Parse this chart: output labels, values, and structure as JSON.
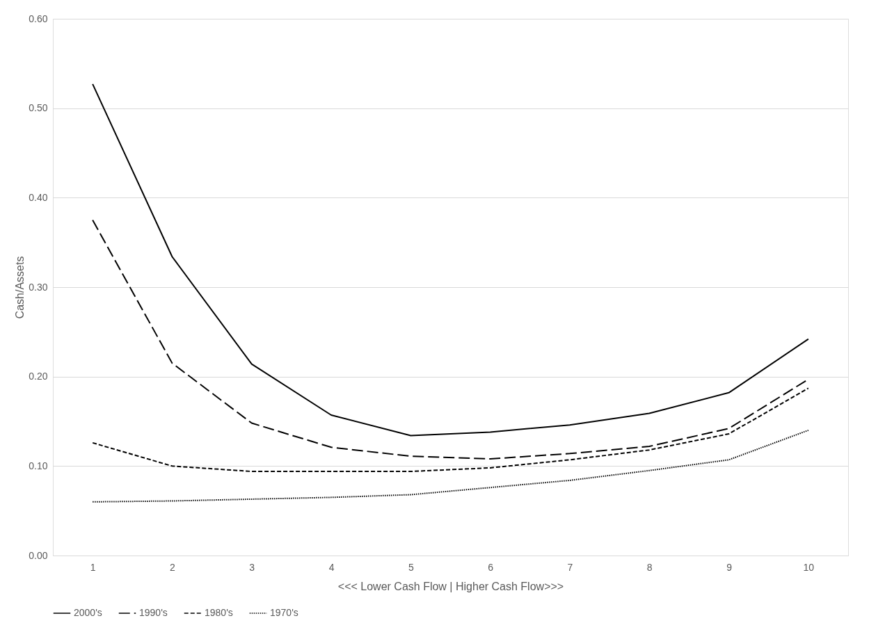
{
  "chart_data": {
    "type": "line",
    "xlabel": "<<< Lower Cash Flow    |    Higher Cash Flow>>>",
    "ylabel": "Cash/Assets",
    "categories": [
      "1",
      "2",
      "3",
      "4",
      "5",
      "6",
      "7",
      "8",
      "9",
      "10"
    ],
    "series": [
      {
        "name": "2000's",
        "color": "#000000",
        "line_style": "solid",
        "values": [
          0.527,
          0.334,
          0.214,
          0.157,
          0.134,
          0.138,
          0.146,
          0.159,
          0.182,
          0.242
        ]
      },
      {
        "name": "1990's",
        "color": "#000000",
        "line_style": "longdash",
        "values": [
          0.375,
          0.215,
          0.148,
          0.121,
          0.111,
          0.108,
          0.114,
          0.122,
          0.142,
          0.197
        ]
      },
      {
        "name": "1980's",
        "color": "#000000",
        "line_style": "dashed",
        "values": [
          0.126,
          0.1,
          0.094,
          0.094,
          0.094,
          0.098,
          0.107,
          0.118,
          0.136,
          0.187
        ]
      },
      {
        "name": "1970's",
        "color": "#000000",
        "line_style": "dotted",
        "values": [
          0.06,
          0.061,
          0.063,
          0.065,
          0.068,
          0.076,
          0.084,
          0.095,
          0.107,
          0.14
        ]
      }
    ],
    "ylim": [
      0,
      0.6
    ],
    "yticks": [
      {
        "value": 0,
        "label": "0.00"
      },
      {
        "value": 0.1,
        "label": "0.10"
      },
      {
        "value": 0.2,
        "label": "0.20"
      },
      {
        "value": 0.3,
        "label": "0.30"
      },
      {
        "value": 0.4,
        "label": "0.40"
      },
      {
        "value": 0.5,
        "label": "0.50"
      },
      {
        "value": 0.6,
        "label": "0.60"
      }
    ],
    "grid": "y",
    "legend": "bottom",
    "marker": "none"
  }
}
